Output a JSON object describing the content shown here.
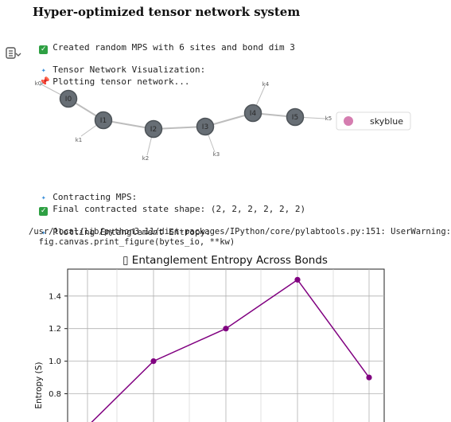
{
  "title": "Hyper-optimized tensor network system",
  "output_lines": {
    "created": "Created random MPS with 6 sites and bond dim 3",
    "viz_header": "Tensor Network Visualization:",
    "plotting_network": "Plotting tensor network...",
    "contracting": "Contracting MPS:",
    "final_shape": "Final contracted state shape: (2, 2, 2, 2, 2, 2)",
    "plotting_entropy": "Plotting Entanglement Entropy:",
    "warning_path": "/usr/local/lib/python3.11/dist-packages/IPython/core/pylabtools.py:151: UserWarning:",
    "warning_code": "  fig.canvas.print_figure(bytes_io, **kw)"
  },
  "network_graph": {
    "nodes": [
      "I0",
      "I1",
      "I2",
      "I3",
      "I4",
      "I5"
    ],
    "physical_indices": [
      "k0",
      "k1",
      "k2",
      "k3",
      "k4",
      "k5"
    ],
    "legend_label": "skyblue",
    "node_color": "#676e75",
    "legend_color": "#d57db0"
  },
  "chart_data": {
    "type": "line",
    "title": "▯ Entanglement Entropy Across Bonds",
    "ylabel": "Entropy (S)",
    "xlabel": "",
    "x": [
      0,
      1,
      2,
      3,
      4
    ],
    "y": [
      0.6,
      1.0,
      1.2,
      1.5,
      0.9
    ],
    "yticks": [
      "0.8",
      "1.0",
      "1.2",
      "1.4"
    ],
    "ylim": [
      0.6,
      1.56
    ],
    "color": "#800080",
    "grid": true
  }
}
